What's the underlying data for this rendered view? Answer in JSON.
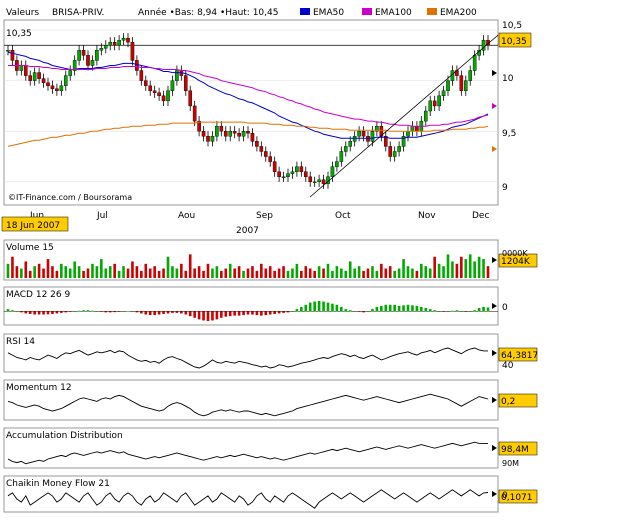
{
  "header": {
    "field_label": "Valeurs",
    "symbol": "BRISA-PRIV.",
    "range_text": "Année •Bas: 8,94 •Haut: 10,45",
    "legend": [
      {
        "label": "EMA50",
        "color": "#0000cc"
      },
      {
        "label": "EMA100",
        "color": "#cc00cc"
      },
      {
        "label": "EMA200",
        "color": "#e07000"
      }
    ]
  },
  "colors": {
    "up": "#00aa00",
    "down": "#cc0000",
    "ema50": "#0000cc",
    "ema100": "#cc00cc",
    "ema200": "#e07000",
    "highlight_box": "#ffcc00",
    "grid": "#dddddd"
  },
  "watermark": "©IT-Finance.com / Boursorama",
  "date_badge": "18 Jun 2007",
  "x_axis": {
    "months": [
      "Jun",
      "Jul",
      "Aou",
      "Sep",
      "Oct",
      "Nov",
      "Dec"
    ],
    "year": "2007"
  },
  "price_panel": {
    "last_value_label": "10,35",
    "left_value_label": "10,35",
    "y_ticks": [
      "10,5",
      "10",
      "9,5",
      "9"
    ]
  },
  "chart_data": [
    {
      "type": "candlestick",
      "title": "BRISA-PRIV.",
      "ylim": [
        8.85,
        10.55
      ],
      "reference_line": 10.35,
      "close": [
        10.3,
        10.2,
        10.1,
        10.15,
        10.05,
        10.0,
        10.08,
        10.02,
        9.98,
        9.95,
        9.92,
        9.9,
        9.95,
        10.05,
        10.1,
        10.2,
        10.3,
        10.25,
        10.15,
        10.2,
        10.3,
        10.32,
        10.35,
        10.38,
        10.35,
        10.4,
        10.42,
        10.38,
        10.2,
        10.1,
        10.0,
        9.95,
        9.9,
        9.88,
        9.85,
        9.8,
        9.9,
        10.0,
        10.1,
        10.05,
        9.9,
        9.75,
        9.6,
        9.5,
        9.45,
        9.4,
        9.45,
        9.55,
        9.5,
        9.45,
        9.5,
        9.48,
        9.45,
        9.5,
        9.48,
        9.4,
        9.35,
        9.3,
        9.25,
        9.2,
        9.1,
        9.05,
        9.05,
        9.08,
        9.1,
        9.15,
        9.1,
        9.05,
        9.0,
        9.0,
        9.02,
        8.98,
        9.05,
        9.15,
        9.2,
        9.3,
        9.35,
        9.4,
        9.45,
        9.5,
        9.45,
        9.4,
        9.5,
        9.55,
        9.45,
        9.35,
        9.25,
        9.3,
        9.35,
        9.45,
        9.5,
        9.55,
        9.5,
        9.6,
        9.7,
        9.8,
        9.75,
        9.85,
        9.9,
        10.0,
        10.1,
        10.05,
        9.9,
        10.0,
        10.1,
        10.25,
        10.3,
        10.4,
        10.35
      ],
      "ema50": [
        10.28,
        10.27,
        10.26,
        10.25,
        10.24,
        10.22,
        10.21,
        10.2,
        10.18,
        10.17,
        10.15,
        10.14,
        10.13,
        10.12,
        10.11,
        10.11,
        10.12,
        10.12,
        10.12,
        10.12,
        10.13,
        10.13,
        10.14,
        10.15,
        10.15,
        10.16,
        10.17,
        10.17,
        10.17,
        10.16,
        10.15,
        10.14,
        10.13,
        10.12,
        10.11,
        10.09,
        10.09,
        10.08,
        10.08,
        10.08,
        10.07,
        10.05,
        10.03,
        10.0,
        9.98,
        9.95,
        9.93,
        9.91,
        9.89,
        9.87,
        9.86,
        9.84,
        9.82,
        9.81,
        9.79,
        9.78,
        9.76,
        9.74,
        9.72,
        9.7,
        9.68,
        9.65,
        9.63,
        9.61,
        9.59,
        9.58,
        9.56,
        9.54,
        9.52,
        9.5,
        9.49,
        9.47,
        9.46,
        9.45,
        9.44,
        9.43,
        9.43,
        9.43,
        9.43,
        9.43,
        9.43,
        9.43,
        9.43,
        9.44,
        9.44,
        9.44,
        9.43,
        9.43,
        9.43,
        9.43,
        9.44,
        9.44,
        9.44,
        9.45,
        9.46,
        9.47,
        9.48,
        9.49,
        9.5,
        9.52,
        9.54,
        9.55,
        9.56,
        9.57,
        9.59,
        9.61,
        9.63,
        9.65,
        9.67
      ],
      "ema100": [
        10.15,
        10.15,
        10.15,
        10.15,
        10.15,
        10.14,
        10.14,
        10.14,
        10.13,
        10.13,
        10.12,
        10.12,
        10.11,
        10.11,
        10.11,
        10.11,
        10.11,
        10.11,
        10.11,
        10.11,
        10.12,
        10.12,
        10.12,
        10.13,
        10.13,
        10.13,
        10.14,
        10.14,
        10.14,
        10.14,
        10.13,
        10.13,
        10.13,
        10.12,
        10.12,
        10.11,
        10.11,
        10.11,
        10.11,
        10.1,
        10.1,
        10.09,
        10.08,
        10.07,
        10.05,
        10.04,
        10.03,
        10.02,
        10.0,
        9.99,
        9.98,
        9.97,
        9.96,
        9.95,
        9.94,
        9.93,
        9.91,
        9.9,
        9.89,
        9.87,
        9.86,
        9.84,
        9.83,
        9.81,
        9.8,
        9.78,
        9.77,
        9.75,
        9.74,
        9.72,
        9.71,
        9.69,
        9.68,
        9.67,
        9.66,
        9.65,
        9.64,
        9.63,
        9.62,
        9.62,
        9.61,
        9.6,
        9.6,
        9.59,
        9.59,
        9.58,
        9.57,
        9.57,
        9.56,
        9.56,
        9.56,
        9.55,
        9.55,
        9.55,
        9.55,
        9.56,
        9.56,
        9.56,
        9.57,
        9.57,
        9.58,
        9.59,
        9.59,
        9.6,
        9.61,
        9.62,
        9.64,
        9.65,
        9.66
      ],
      "ema200": [
        9.35,
        9.36,
        9.37,
        9.38,
        9.39,
        9.4,
        9.41,
        9.41,
        9.42,
        9.43,
        9.44,
        9.44,
        9.45,
        9.46,
        9.46,
        9.47,
        9.48,
        9.48,
        9.49,
        9.5,
        9.5,
        9.51,
        9.52,
        9.52,
        9.53,
        9.53,
        9.54,
        9.54,
        9.55,
        9.55,
        9.55,
        9.56,
        9.56,
        9.56,
        9.57,
        9.57,
        9.57,
        9.58,
        9.58,
        9.58,
        9.58,
        9.58,
        9.58,
        9.59,
        9.59,
        9.59,
        9.59,
        9.59,
        9.59,
        9.59,
        9.59,
        9.59,
        9.59,
        9.59,
        9.58,
        9.58,
        9.58,
        9.58,
        9.58,
        9.57,
        9.57,
        9.57,
        9.56,
        9.56,
        9.56,
        9.55,
        9.55,
        9.55,
        9.54,
        9.54,
        9.53,
        9.53,
        9.53,
        9.52,
        9.52,
        9.52,
        9.52,
        9.51,
        9.51,
        9.51,
        9.51,
        9.51,
        9.51,
        9.51,
        9.51,
        9.51,
        9.5,
        9.5,
        9.5,
        9.5,
        9.5,
        9.5,
        9.5,
        9.5,
        9.5,
        9.5,
        9.51,
        9.51,
        9.51,
        9.51,
        9.52,
        9.52,
        9.52,
        9.52,
        9.53,
        9.53,
        9.54,
        9.54,
        9.55
      ]
    },
    {
      "type": "bar",
      "title": "Volume 15",
      "value_label": "1204K",
      "axis_label": "0000K",
      "values": [
        0.6,
        0.9,
        0.5,
        0.4,
        0.7,
        0.3,
        0.5,
        0.6,
        0.4,
        0.8,
        0.5,
        0.3,
        0.6,
        0.5,
        0.4,
        0.7,
        0.5,
        0.3,
        0.4,
        0.6,
        0.5,
        0.8,
        0.4,
        0.5,
        0.6,
        0.3,
        0.5,
        0.4,
        0.7,
        0.5,
        0.3,
        0.6,
        0.4,
        0.5,
        0.3,
        0.4,
        0.9,
        0.5,
        0.4,
        0.6,
        0.3,
        1.0,
        0.4,
        0.5,
        0.3,
        0.6,
        0.4,
        0.5,
        0.3,
        0.4,
        0.6,
        0.4,
        0.5,
        0.3,
        0.4,
        0.5,
        0.3,
        0.6,
        0.4,
        0.5,
        0.3,
        0.4,
        0.5,
        0.3,
        0.4,
        0.6,
        0.3,
        0.5,
        0.4,
        0.3,
        0.5,
        0.4,
        0.6,
        0.3,
        0.5,
        0.4,
        0.3,
        0.7,
        0.4,
        0.5,
        0.3,
        0.4,
        0.5,
        0.3,
        0.6,
        0.4,
        0.5,
        0.3,
        0.4,
        0.8,
        0.5,
        0.4,
        0.3,
        0.6,
        0.5,
        0.4,
        0.9,
        0.6,
        0.5,
        1.0,
        0.7,
        0.6,
        0.9,
        0.8,
        1.0,
        0.7,
        0.9,
        0.8,
        0.5
      ],
      "up": [
        1,
        0,
        0,
        1,
        0,
        0,
        1,
        0,
        0,
        0,
        0,
        0,
        1,
        1,
        1,
        1,
        1,
        0,
        0,
        1,
        1,
        1,
        1,
        1,
        0,
        1,
        1,
        0,
        0,
        0,
        0,
        0,
        0,
        0,
        0,
        0,
        1,
        1,
        1,
        0,
        0,
        0,
        0,
        0,
        0,
        0,
        1,
        1,
        0,
        0,
        1,
        0,
        0,
        1,
        0,
        0,
        0,
        0,
        0,
        0,
        0,
        0,
        0,
        1,
        1,
        1,
        0,
        0,
        0,
        0,
        1,
        0,
        1,
        1,
        1,
        1,
        1,
        1,
        1,
        1,
        0,
        0,
        1,
        1,
        0,
        0,
        0,
        1,
        1,
        1,
        1,
        1,
        0,
        1,
        1,
        1,
        0,
        1,
        1,
        1,
        1,
        0,
        0,
        1,
        1,
        1,
        1,
        1,
        0
      ]
    },
    {
      "type": "bar",
      "title": "MACD 12 26 9",
      "zero_label": "0",
      "values": [
        0.2,
        0.1,
        0.0,
        -0.1,
        -0.2,
        -0.25,
        -0.3,
        -0.3,
        -0.3,
        -0.28,
        -0.25,
        -0.2,
        -0.15,
        -0.1,
        -0.05,
        0.0,
        0.05,
        0.1,
        0.1,
        0.05,
        0.0,
        -0.05,
        -0.1,
        -0.1,
        -0.08,
        -0.05,
        0.0,
        0.02,
        0.0,
        -0.1,
        -0.2,
        -0.3,
        -0.35,
        -0.35,
        -0.3,
        -0.25,
        -0.2,
        -0.15,
        -0.15,
        -0.2,
        -0.3,
        -0.45,
        -0.6,
        -0.75,
        -0.85,
        -0.9,
        -0.85,
        -0.75,
        -0.6,
        -0.5,
        -0.45,
        -0.4,
        -0.4,
        -0.35,
        -0.3,
        -0.3,
        -0.35,
        -0.4,
        -0.35,
        -0.3,
        -0.25,
        -0.2,
        -0.15,
        -0.1,
        0.0,
        0.2,
        0.4,
        0.6,
        0.8,
        0.9,
        0.95,
        0.9,
        0.8,
        0.7,
        0.6,
        0.4,
        0.2,
        0.1,
        0.0,
        -0.05,
        -0.1,
        0.0,
        0.2,
        0.4,
        0.5,
        0.6,
        0.6,
        0.6,
        0.5,
        0.55,
        0.6,
        0.55,
        0.5,
        0.4,
        0.3,
        0.2,
        0.1,
        0.0,
        -0.05,
        0.0,
        0.05,
        0.1,
        0.0,
        -0.05,
        0.0,
        0.1,
        0.3,
        0.4,
        0.35
      ]
    },
    {
      "type": "line",
      "title": "RSI 14",
      "value_label": "64,3817",
      "tick_label": "40",
      "values": [
        60,
        55,
        50,
        48,
        45,
        50,
        47,
        45,
        50,
        55,
        52,
        48,
        55,
        60,
        58,
        62,
        65,
        60,
        55,
        58,
        62,
        60,
        62,
        65,
        60,
        64,
        62,
        55,
        50,
        45,
        42,
        44,
        40,
        42,
        38,
        45,
        50,
        52,
        48,
        45,
        40,
        35,
        30,
        28,
        32,
        38,
        45,
        40,
        38,
        42,
        40,
        38,
        42,
        40,
        38,
        35,
        33,
        30,
        32,
        28,
        30,
        35,
        33,
        30,
        32,
        35,
        38,
        40,
        42,
        45,
        48,
        50,
        48,
        52,
        55,
        58,
        56,
        52,
        55,
        50,
        48,
        52,
        55,
        50,
        45,
        48,
        52,
        55,
        58,
        60,
        62,
        58,
        55,
        60,
        62,
        65,
        60,
        64,
        68,
        70,
        66,
        62,
        58,
        64,
        68,
        70,
        66,
        64,
        64
      ]
    },
    {
      "type": "line",
      "title": "Momentum 12",
      "value_label": "0,2",
      "values": [
        0.1,
        0.05,
        -0.05,
        -0.1,
        -0.15,
        -0.1,
        -0.05,
        -0.1,
        -0.2,
        -0.25,
        -0.3,
        -0.25,
        -0.2,
        -0.1,
        0.0,
        0.1,
        0.2,
        0.25,
        0.2,
        0.15,
        0.1,
        0.2,
        0.25,
        0.2,
        0.3,
        0.35,
        0.3,
        0.2,
        0.1,
        0.0,
        -0.1,
        -0.15,
        -0.2,
        -0.25,
        -0.3,
        -0.25,
        -0.1,
        0.0,
        0.05,
        0.0,
        -0.1,
        -0.2,
        -0.35,
        -0.45,
        -0.5,
        -0.45,
        -0.35,
        -0.3,
        -0.25,
        -0.3,
        -0.25,
        -0.3,
        -0.35,
        -0.3,
        -0.3,
        -0.35,
        -0.4,
        -0.45,
        -0.4,
        -0.45,
        -0.5,
        -0.45,
        -0.4,
        -0.35,
        -0.3,
        -0.2,
        -0.15,
        -0.1,
        -0.05,
        0.0,
        0.05,
        0.1,
        0.15,
        0.2,
        0.25,
        0.3,
        0.35,
        0.3,
        0.25,
        0.2,
        0.15,
        0.2,
        0.25,
        0.3,
        0.25,
        0.2,
        0.15,
        0.1,
        0.05,
        0.1,
        0.15,
        0.2,
        0.25,
        0.3,
        0.35,
        0.4,
        0.35,
        0.3,
        0.25,
        0.2,
        0.1,
        0.0,
        -0.1,
        0.0,
        0.1,
        0.2,
        0.3,
        0.25,
        0.2
      ]
    },
    {
      "type": "line",
      "title": "Accumulation Distribution",
      "value_label": "98,4M",
      "bottom_label": "90M",
      "values": [
        92,
        91,
        90.5,
        91,
        90,
        90.5,
        91,
        91.5,
        91,
        92,
        92.5,
        93,
        93.5,
        93,
        94,
        94.5,
        94,
        93.5,
        94,
        94.5,
        95,
        94.5,
        95,
        95.5,
        95,
        94.5,
        95,
        94,
        93.5,
        93,
        92.5,
        92,
        92.5,
        93,
        92.5,
        93,
        93.5,
        94,
        94.5,
        94,
        93.5,
        93,
        92.5,
        92,
        91.5,
        92,
        92.5,
        93,
        92.5,
        93,
        93.5,
        93,
        93.5,
        94,
        93.5,
        93,
        92.5,
        93,
        92.5,
        92,
        92.5,
        92,
        91.5,
        92,
        92.5,
        93,
        93.5,
        94,
        94.5,
        94,
        94.5,
        95,
        95.5,
        96,
        95.5,
        96,
        96.5,
        96,
        95.5,
        95,
        95.5,
        96,
        96.5,
        97,
        96.5,
        96,
        96.5,
        97,
        97.5,
        97,
        96.5,
        97,
        97.5,
        98,
        97.5,
        97,
        96.5,
        97,
        97.5,
        98,
        98.5,
        98,
        97.5,
        98,
        98.5,
        99,
        98.5,
        98.4,
        98.4
      ]
    },
    {
      "type": "line",
      "title": "Chaikin Money Flow 21",
      "value_label": "0,1071",
      "zero_label": "0",
      "values": [
        0.05,
        0.1,
        0.0,
        -0.05,
        0.05,
        -0.1,
        -0.05,
        0.0,
        0.05,
        0.1,
        0.05,
        -0.05,
        0.0,
        0.1,
        0.05,
        0.0,
        -0.05,
        0.05,
        0.1,
        0.0,
        -0.1,
        -0.05,
        0.05,
        0.1,
        0.0,
        -0.05,
        0.05,
        0.1,
        0.05,
        -0.05,
        -0.1,
        0.0,
        0.05,
        -0.05,
        0.0,
        0.1,
        0.05,
        0.0,
        -0.05,
        0.05,
        0.1,
        0.0,
        -0.1,
        -0.05,
        0.0,
        0.05,
        -0.05,
        0.0,
        0.1,
        0.05,
        0.0,
        -0.05,
        0.05,
        0.0,
        -0.1,
        -0.05,
        0.05,
        0.1,
        0.0,
        -0.05,
        0.05,
        0.0,
        -0.05,
        0.05,
        0.1,
        0.05,
        0.0,
        -0.05,
        -0.1,
        -0.15,
        -0.05,
        0.0,
        0.05,
        0.1,
        0.05,
        0.0,
        0.05,
        0.1,
        0.05,
        0.0,
        -0.05,
        0.0,
        0.05,
        0.1,
        0.15,
        0.1,
        0.05,
        0.0,
        0.05,
        0.1,
        0.05,
        0.0,
        -0.05,
        0.0,
        0.05,
        0.1,
        0.05,
        0.0,
        0.05,
        0.1,
        0.15,
        0.1,
        0.05,
        0.1,
        0.15,
        0.1,
        0.05,
        0.1,
        0.1071
      ]
    }
  ]
}
